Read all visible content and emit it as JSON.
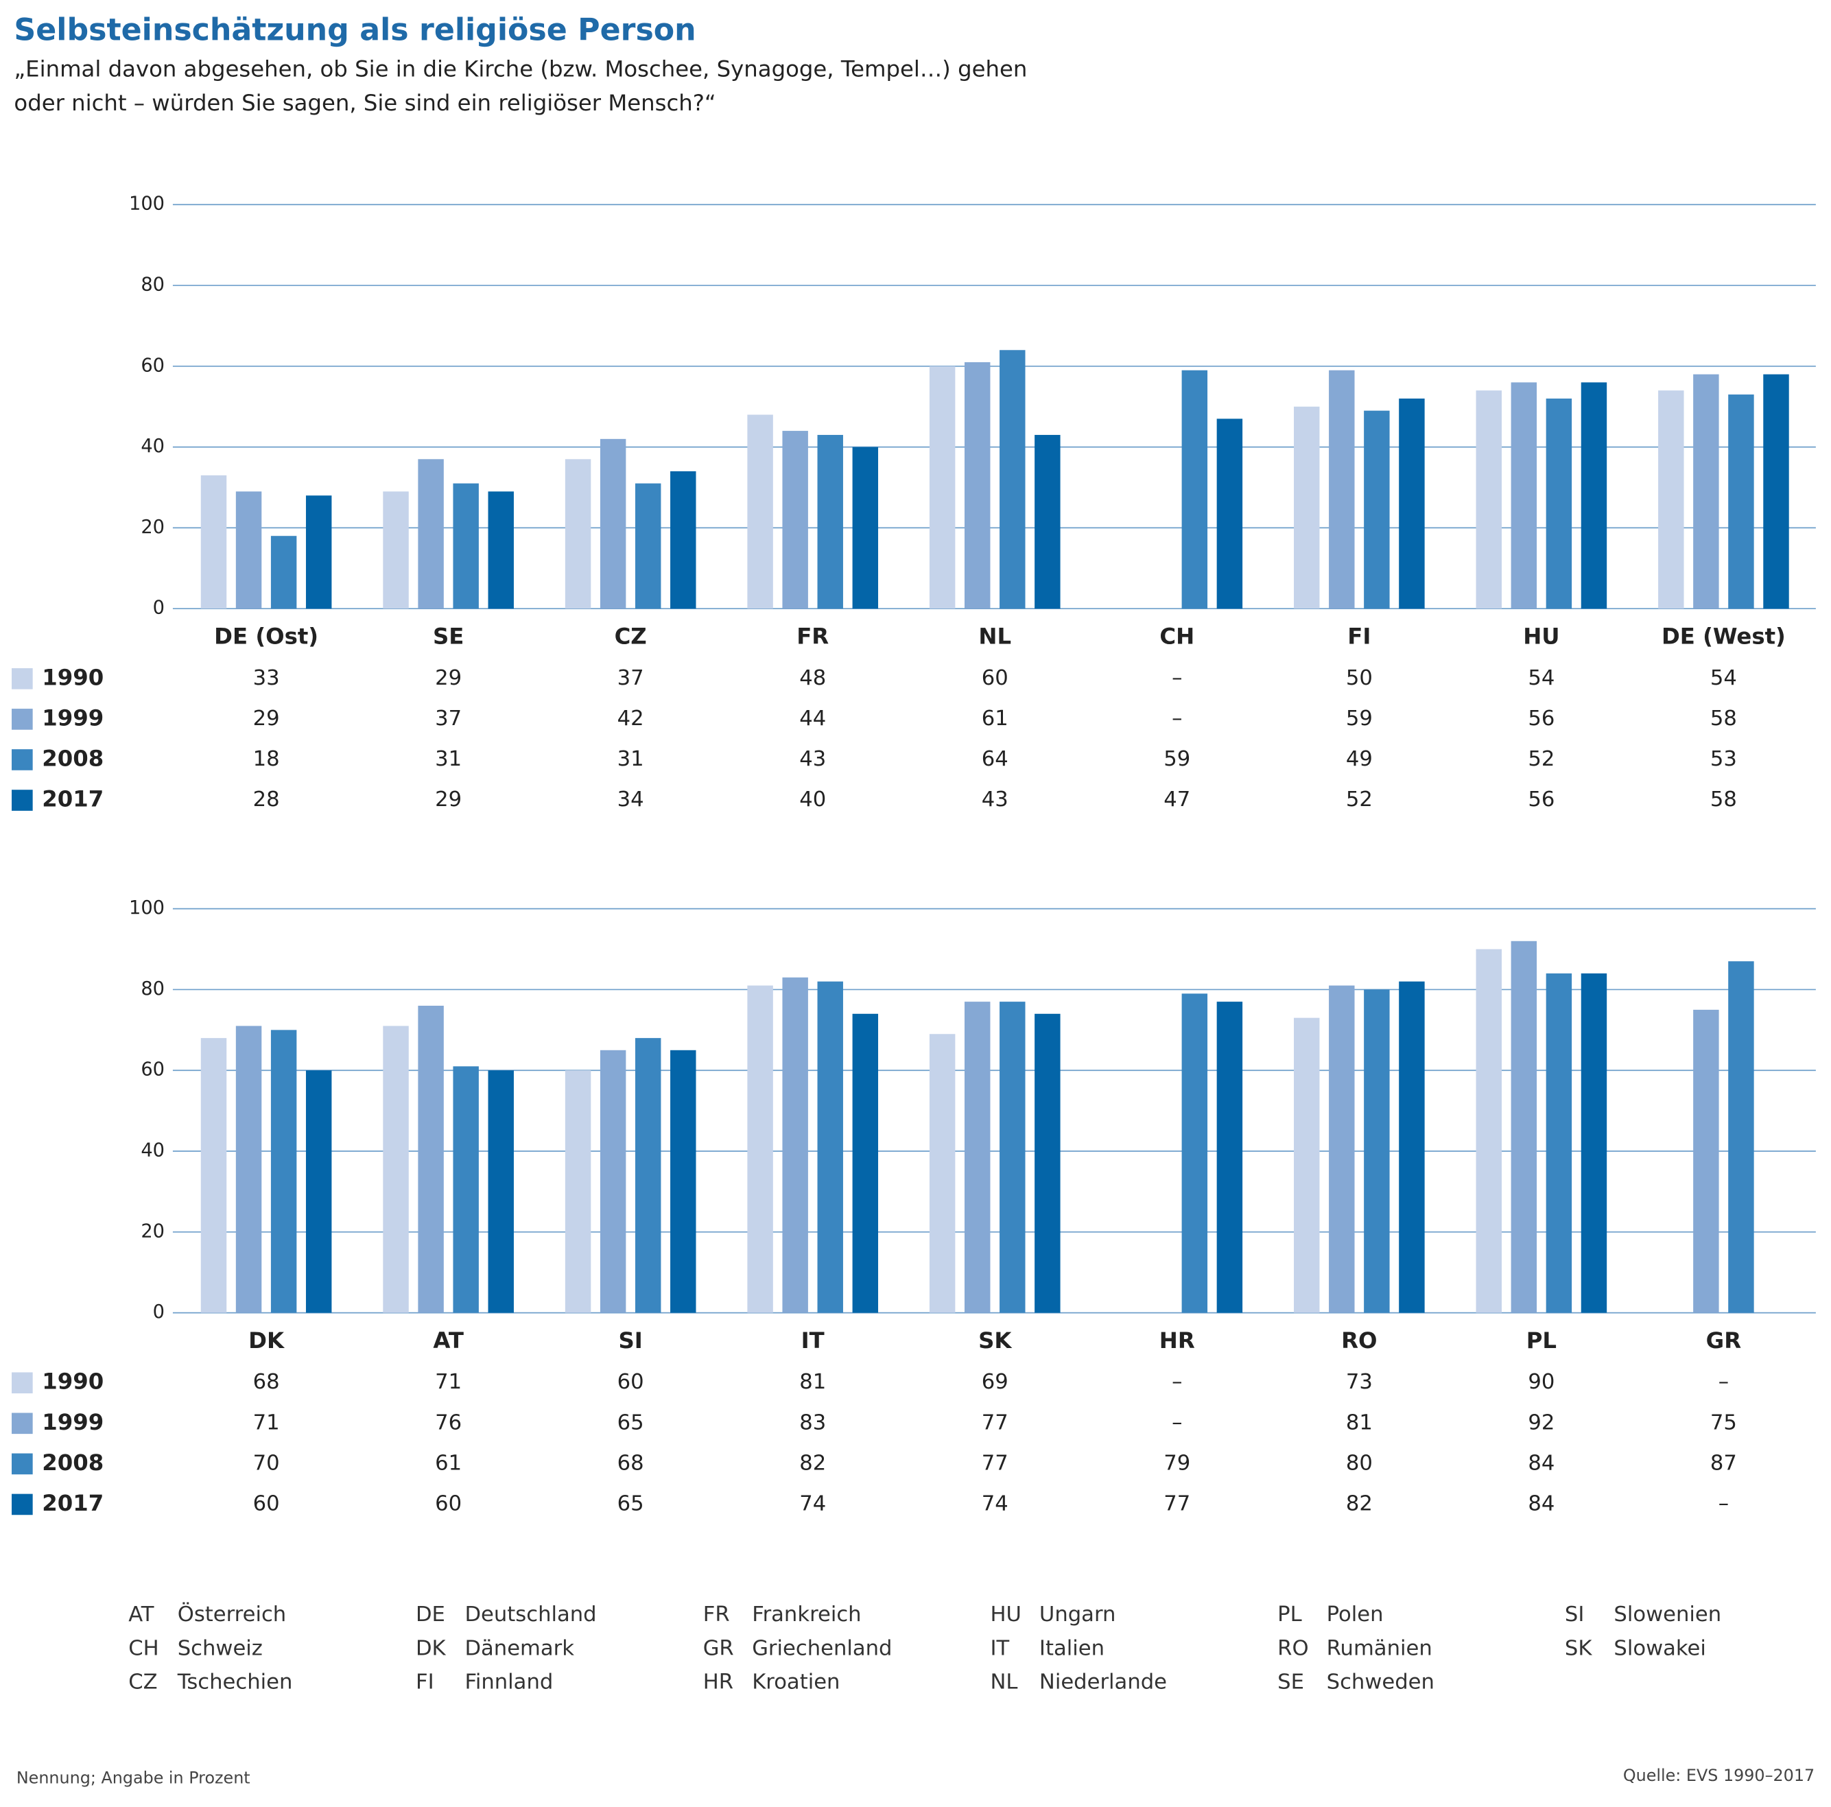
{
  "title": "Selbsteinschätzung als religiöse Person",
  "subtitle": [
    "„Einmal davon abgesehen, ob Sie in die Kirche (bzw. Moschee, Synagoge, Tempel…) gehen",
    "oder nicht – würden Sie sagen, Sie sind ein religiöser Mensch?“"
  ],
  "note": "Nennung; Angabe in Prozent",
  "source": "Quelle: EVS 1990–2017",
  "abbreviations": [
    {
      "code": "AT",
      "name": "Österreich"
    },
    {
      "code": "CH",
      "name": "Schweiz"
    },
    {
      "code": "CZ",
      "name": "Tschechien"
    },
    {
      "code": "DE",
      "name": "Deutschland"
    },
    {
      "code": "DK",
      "name": "Dänemark"
    },
    {
      "code": "FI",
      "name": "Finnland"
    },
    {
      "code": "FR",
      "name": "Frankreich"
    },
    {
      "code": "GR",
      "name": "Griechenland"
    },
    {
      "code": "HR",
      "name": "Kroatien"
    },
    {
      "code": "HU",
      "name": "Ungarn"
    },
    {
      "code": "IT",
      "name": "Italien"
    },
    {
      "code": "NL",
      "name": "Niederlande"
    },
    {
      "code": "PL",
      "name": "Polen"
    },
    {
      "code": "RO",
      "name": "Rumänien"
    },
    {
      "code": "SE",
      "name": "Schweden"
    },
    {
      "code": "SI",
      "name": "Slowenien"
    },
    {
      "code": "SK",
      "name": "Slowakei"
    }
  ],
  "chart_data": [
    {
      "type": "bar",
      "categories": [
        "DE (Ost)",
        "SE",
        "CZ",
        "FR",
        "NL",
        "CH",
        "FI",
        "HU",
        "DE (West)"
      ],
      "series": [
        {
          "name": "1990",
          "color": "#c5d3ea",
          "values": [
            33,
            29,
            37,
            48,
            60,
            null,
            50,
            54,
            54
          ]
        },
        {
          "name": "1999",
          "color": "#85a8d4",
          "values": [
            29,
            37,
            42,
            44,
            61,
            null,
            59,
            56,
            58
          ]
        },
        {
          "name": "2008",
          "color": "#3a86c0",
          "values": [
            18,
            31,
            31,
            43,
            64,
            59,
            49,
            52,
            53
          ]
        },
        {
          "name": "2017",
          "color": "#0465a8",
          "values": [
            28,
            29,
            34,
            40,
            43,
            47,
            52,
            56,
            58
          ]
        }
      ],
      "missing_label": "–",
      "ylim": [
        0,
        100
      ],
      "yticks": [
        0,
        20,
        40,
        60,
        80,
        100
      ],
      "grid": true
    },
    {
      "type": "bar",
      "categories": [
        "DK",
        "AT",
        "SI",
        "IT",
        "SK",
        "HR",
        "RO",
        "PL",
        "GR"
      ],
      "series": [
        {
          "name": "1990",
          "color": "#c5d3ea",
          "values": [
            68,
            71,
            60,
            81,
            69,
            null,
            73,
            90,
            null
          ]
        },
        {
          "name": "1999",
          "color": "#85a8d4",
          "values": [
            71,
            76,
            65,
            83,
            77,
            null,
            81,
            92,
            75
          ]
        },
        {
          "name": "2008",
          "color": "#3a86c0",
          "values": [
            70,
            61,
            68,
            82,
            77,
            79,
            80,
            84,
            87
          ]
        },
        {
          "name": "2017",
          "color": "#0465a8",
          "values": [
            60,
            60,
            65,
            74,
            74,
            77,
            82,
            84,
            null
          ]
        }
      ],
      "missing_label": "–",
      "ylim": [
        0,
        100
      ],
      "yticks": [
        0,
        20,
        40,
        60,
        80,
        100
      ],
      "grid": true
    }
  ]
}
